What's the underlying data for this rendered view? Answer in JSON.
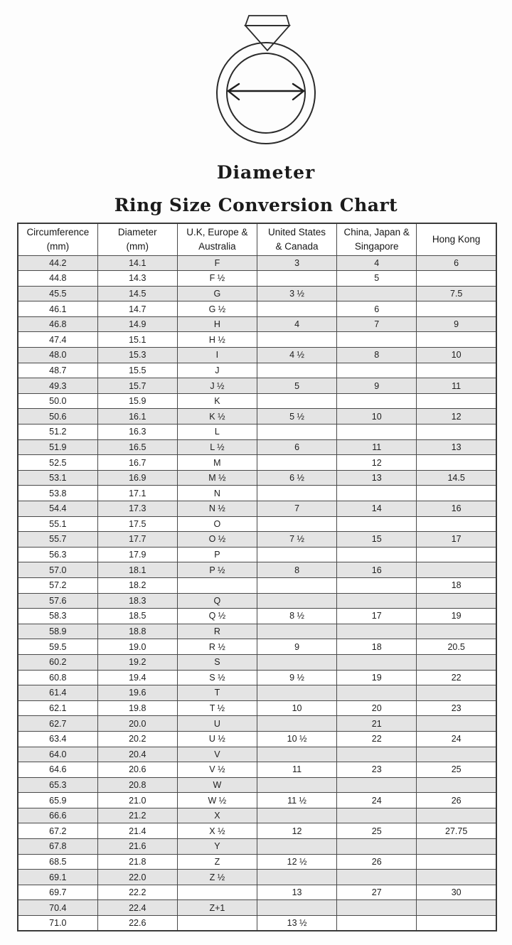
{
  "hero": {
    "diameter_label": "Diameter"
  },
  "title": "Ring Size Conversion Chart",
  "style": {
    "row_shade": "#e4e4e4",
    "grid_border": "#4a4a4a",
    "outer_border": "#3a3a3a",
    "ink": "#1f1f1f"
  },
  "chart_data": {
    "type": "table",
    "title": "Ring Size Conversion Chart",
    "columns": [
      [
        "Circumference",
        "(mm)"
      ],
      [
        "Diameter",
        "(mm)"
      ],
      [
        "U.K, Europe &",
        "Australia"
      ],
      [
        "United States",
        "& Canada"
      ],
      [
        "China, Japan &",
        "Singapore"
      ],
      [
        "Hong Kong",
        ""
      ]
    ],
    "rows": [
      [
        "44.2",
        "14.1",
        "F",
        "3",
        "4",
        "6"
      ],
      [
        "44.8",
        "14.3",
        "F ½",
        "",
        "5",
        ""
      ],
      [
        "45.5",
        "14.5",
        "G",
        "3 ½",
        "",
        "7.5"
      ],
      [
        "46.1",
        "14.7",
        "G ½",
        "",
        "6",
        ""
      ],
      [
        "46.8",
        "14.9",
        "H",
        "4",
        "7",
        "9"
      ],
      [
        "47.4",
        "15.1",
        "H ½",
        "",
        "",
        ""
      ],
      [
        "48.0",
        "15.3",
        "I",
        "4 ½",
        "8",
        "10"
      ],
      [
        "48.7",
        "15.5",
        "J",
        "",
        "",
        ""
      ],
      [
        "49.3",
        "15.7",
        "J ½",
        "5",
        "9",
        "11"
      ],
      [
        "50.0",
        "15.9",
        "K",
        "",
        "",
        ""
      ],
      [
        "50.6",
        "16.1",
        "K ½",
        "5 ½",
        "10",
        "12"
      ],
      [
        "51.2",
        "16.3",
        "L",
        "",
        "",
        ""
      ],
      [
        "51.9",
        "16.5",
        "L ½",
        "6",
        "11",
        "13"
      ],
      [
        "52.5",
        "16.7",
        "M",
        "",
        "12",
        ""
      ],
      [
        "53.1",
        "16.9",
        "M ½",
        "6 ½",
        "13",
        "14.5"
      ],
      [
        "53.8",
        "17.1",
        "N",
        "",
        "",
        ""
      ],
      [
        "54.4",
        "17.3",
        "N ½",
        "7",
        "14",
        "16"
      ],
      [
        "55.1",
        "17.5",
        "O",
        "",
        "",
        ""
      ],
      [
        "55.7",
        "17.7",
        "O ½",
        "7 ½",
        "15",
        "17"
      ],
      [
        "56.3",
        "17.9",
        "P",
        "",
        "",
        ""
      ],
      [
        "57.0",
        "18.1",
        "P ½",
        "8",
        "16",
        ""
      ],
      [
        "57.2",
        "18.2",
        "",
        "",
        "",
        "18"
      ],
      [
        "57.6",
        "18.3",
        "Q",
        "",
        "",
        ""
      ],
      [
        "58.3",
        "18.5",
        "Q ½",
        "8 ½",
        "17",
        "19"
      ],
      [
        "58.9",
        "18.8",
        "R",
        "",
        "",
        ""
      ],
      [
        "59.5",
        "19.0",
        "R ½",
        "9",
        "18",
        "20.5"
      ],
      [
        "60.2",
        "19.2",
        "S",
        "",
        "",
        ""
      ],
      [
        "60.8",
        "19.4",
        "S ½",
        "9 ½",
        "19",
        "22"
      ],
      [
        "61.4",
        "19.6",
        "T",
        "",
        "",
        ""
      ],
      [
        "62.1",
        "19.8",
        "T ½",
        "10",
        "20",
        "23"
      ],
      [
        "62.7",
        "20.0",
        "U",
        "",
        "21",
        ""
      ],
      [
        "63.4",
        "20.2",
        "U ½",
        "10 ½",
        "22",
        "24"
      ],
      [
        "64.0",
        "20.4",
        "V",
        "",
        "",
        ""
      ],
      [
        "64.6",
        "20.6",
        "V ½",
        "11",
        "23",
        "25"
      ],
      [
        "65.3",
        "20.8",
        "W",
        "",
        "",
        ""
      ],
      [
        "65.9",
        "21.0",
        "W ½",
        "11 ½",
        "24",
        "26"
      ],
      [
        "66.6",
        "21.2",
        "X",
        "",
        "",
        ""
      ],
      [
        "67.2",
        "21.4",
        "X ½",
        "12",
        "25",
        "27.75"
      ],
      [
        "67.8",
        "21.6",
        "Y",
        "",
        "",
        ""
      ],
      [
        "68.5",
        "21.8",
        "Z",
        "12 ½",
        "26",
        ""
      ],
      [
        "69.1",
        "22.0",
        "Z ½",
        "",
        "",
        ""
      ],
      [
        "69.7",
        "22.2",
        "",
        "13",
        "27",
        "30"
      ],
      [
        "70.4",
        "22.4",
        "Z+1",
        "",
        "",
        ""
      ],
      [
        "71.0",
        "22.6",
        "",
        "13 ½",
        "",
        ""
      ]
    ]
  }
}
